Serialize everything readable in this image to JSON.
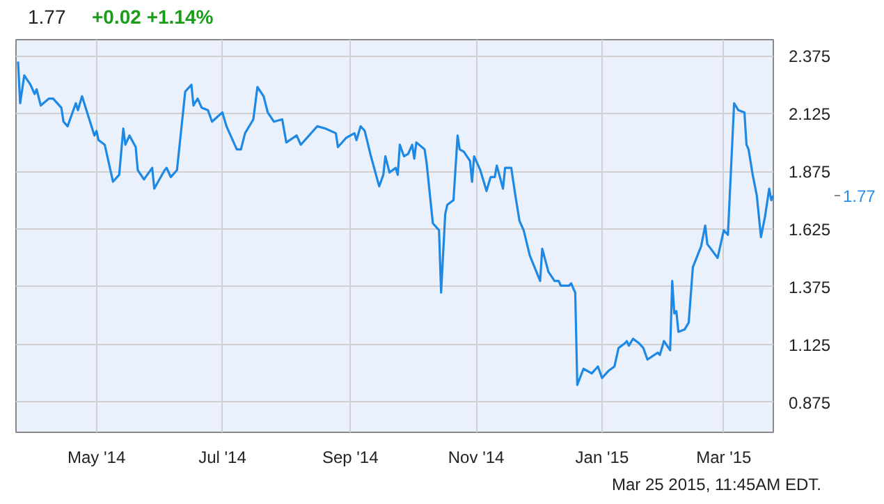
{
  "chart_data": {
    "type": "line",
    "title": "1.77",
    "subtitle": "+0.02  +1.14%",
    "annotations": [
      "1.77",
      "Mar 25 2015, 11:45AM EDT."
    ],
    "x": [
      "2014-03-24",
      "2014-03-25",
      "2014-03-27",
      "2014-03-30",
      "2014-04-01",
      "2014-04-02",
      "2014-04-04",
      "2014-04-08",
      "2014-04-10",
      "2014-04-14",
      "2014-04-15",
      "2014-04-17",
      "2014-04-21",
      "2014-04-22",
      "2014-04-24",
      "2014-04-30",
      "2014-05-01",
      "2014-05-02",
      "2014-05-05",
      "2014-05-09",
      "2014-05-12",
      "2014-05-14",
      "2014-05-15",
      "2014-05-17",
      "2014-05-20",
      "2014-05-21",
      "2014-05-24",
      "2014-05-28",
      "2014-05-29",
      "2014-06-03",
      "2014-06-04",
      "2014-06-06",
      "2014-06-09",
      "2014-06-13",
      "2014-06-16",
      "2014-06-17",
      "2014-06-19",
      "2014-06-21",
      "2014-06-24",
      "2014-06-26",
      "2014-07-01",
      "2014-07-03",
      "2014-07-08",
      "2014-07-10",
      "2014-07-12",
      "2014-07-16",
      "2014-07-18",
      "2014-07-21",
      "2014-07-23",
      "2014-07-26",
      "2014-07-30",
      "2014-08-01",
      "2014-08-06",
      "2014-08-08",
      "2014-08-16",
      "2014-08-20",
      "2014-08-25",
      "2014-08-26",
      "2014-08-30",
      "2014-09-03",
      "2014-09-04",
      "2014-09-06",
      "2014-09-08",
      "2014-09-11",
      "2014-09-15",
      "2014-09-17",
      "2014-09-18",
      "2014-09-20",
      "2014-09-23",
      "2014-09-24",
      "2014-09-25",
      "2014-09-27",
      "2014-09-29",
      "2014-10-01",
      "2014-10-02",
      "2014-10-03",
      "2014-10-07",
      "2014-10-08",
      "2014-10-11",
      "2014-10-14",
      "2014-10-15",
      "2014-10-17",
      "2014-10-18",
      "2014-10-21",
      "2014-10-23",
      "2014-10-24",
      "2014-10-26",
      "2014-10-29",
      "2014-10-30",
      "2014-10-31",
      "2014-11-03",
      "2014-11-06",
      "2014-11-08",
      "2014-11-10",
      "2014-11-11",
      "2014-11-14",
      "2014-11-15",
      "2014-11-18",
      "2014-11-20",
      "2014-11-22",
      "2014-11-24",
      "2014-11-27",
      "2014-12-02",
      "2014-12-03",
      "2014-12-06",
      "2014-12-09",
      "2014-12-11",
      "2014-12-12",
      "2014-12-16",
      "2014-12-17",
      "2014-12-19",
      "2014-12-20",
      "2014-12-23",
      "2014-12-27",
      "2014-12-30",
      "2015-01-01",
      "2015-01-04",
      "2015-01-07",
      "2015-01-09",
      "2015-01-12",
      "2015-01-13",
      "2015-01-14",
      "2015-01-16",
      "2015-01-19",
      "2015-01-21",
      "2015-01-23",
      "2015-01-28",
      "2015-01-29",
      "2015-01-31",
      "2015-02-03",
      "2015-02-04",
      "2015-02-05",
      "2015-02-06",
      "2015-02-07",
      "2015-02-10",
      "2015-02-12",
      "2015-02-14",
      "2015-02-18",
      "2015-02-20",
      "2015-02-21",
      "2015-02-26",
      "2015-03-01",
      "2015-03-03",
      "2015-03-06",
      "2015-03-08",
      "2015-03-11",
      "2015-03-12",
      "2015-03-13",
      "2015-03-15",
      "2015-03-17",
      "2015-03-19",
      "2015-03-21",
      "2015-03-23",
      "2015-03-24",
      "2015-03-25"
    ],
    "series": [
      {
        "color": "#1e88e5",
        "values": [
          2.35,
          2.17,
          2.29,
          2.25,
          2.21,
          2.23,
          2.16,
          2.19,
          2.19,
          2.15,
          2.09,
          2.07,
          2.17,
          2.14,
          2.2,
          2.03,
          2.05,
          2.01,
          1.99,
          1.83,
          1.86,
          2.06,
          1.99,
          2.03,
          1.98,
          1.88,
          1.84,
          1.89,
          1.8,
          1.88,
          1.89,
          1.85,
          1.88,
          2.22,
          2.25,
          2.16,
          2.19,
          2.15,
          2.14,
          2.09,
          2.13,
          2.07,
          1.97,
          1.97,
          2.04,
          2.1,
          2.24,
          2.2,
          2.13,
          2.09,
          2.1,
          2.0,
          2.03,
          1.99,
          2.07,
          2.06,
          2.04,
          1.98,
          2.02,
          2.04,
          2.01,
          2.07,
          2.05,
          1.94,
          1.81,
          1.86,
          1.94,
          1.87,
          1.89,
          1.86,
          1.99,
          1.94,
          1.95,
          1.99,
          1.93,
          2.0,
          1.97,
          1.91,
          1.65,
          1.62,
          1.35,
          1.69,
          1.73,
          1.75,
          2.03,
          1.97,
          1.96,
          1.92,
          1.83,
          1.94,
          1.88,
          1.79,
          1.85,
          1.85,
          1.9,
          1.8,
          1.89,
          1.89,
          1.77,
          1.66,
          1.62,
          1.51,
          1.4,
          1.54,
          1.44,
          1.4,
          1.4,
          1.38,
          1.38,
          1.39,
          1.35,
          0.95,
          1.02,
          1.0,
          1.03,
          0.98,
          1.01,
          1.03,
          1.11,
          1.13,
          1.14,
          1.12,
          1.15,
          1.13,
          1.11,
          1.06,
          1.09,
          1.08,
          1.14,
          1.1,
          1.4,
          1.26,
          1.27,
          1.18,
          1.19,
          1.22,
          1.46,
          1.55,
          1.64,
          1.56,
          1.5,
          1.62,
          1.6,
          2.17,
          2.14,
          2.13,
          1.99,
          1.97,
          1.86,
          1.77,
          1.59,
          1.68,
          1.8,
          1.75,
          1.77
        ]
      }
    ],
    "xlim": [
      "2014-03-23",
      "2015-03-25"
    ],
    "xticks": [
      {
        "value": "2014-05-01",
        "label": "May '14"
      },
      {
        "value": "2014-07-01",
        "label": "Jul '14"
      },
      {
        "value": "2014-09-01",
        "label": "Sep '14"
      },
      {
        "value": "2014-11-01",
        "label": "Nov '14"
      },
      {
        "value": "2015-01-01",
        "label": "Jan '15"
      },
      {
        "value": "2015-03-01",
        "label": "Mar '15"
      }
    ],
    "ylim": [
      0.745,
      2.445
    ],
    "yticks": [
      0.875,
      1.125,
      1.375,
      1.625,
      1.875,
      2.125,
      2.375
    ],
    "grid": true,
    "marker": "none",
    "line_style": "solid"
  }
}
